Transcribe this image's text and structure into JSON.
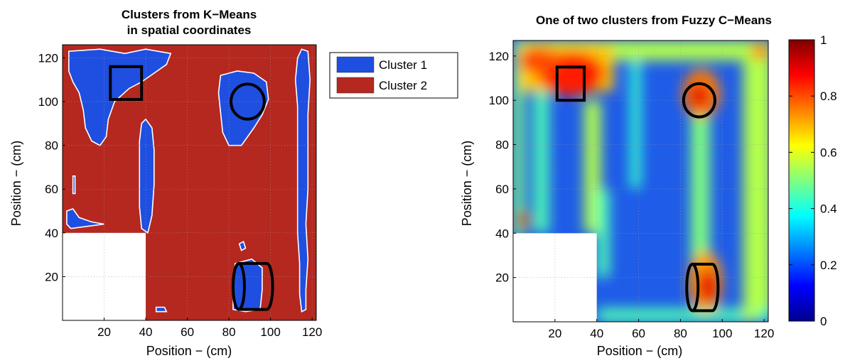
{
  "chart_data": [
    {
      "type": "heatmap",
      "title": "Clusters from K−Means",
      "subtitle": "in spatial coordinates",
      "xlabel": "Position − (cm)",
      "ylabel": "Position − (cm)",
      "xlim": [
        0,
        122
      ],
      "ylim": [
        0,
        126
      ],
      "xticks": [
        20,
        40,
        60,
        80,
        100,
        120
      ],
      "yticks": [
        20,
        40,
        60,
        80,
        100,
        120
      ],
      "grid": "dotted",
      "legend": [
        {
          "name": "Cluster 1",
          "color": "#1f4fe0"
        },
        {
          "name": "Cluster 2",
          "color": "#b5281f"
        }
      ],
      "legend_placement": "outside-top-right",
      "excluded_region": {
        "x": [
          0,
          40
        ],
        "y": [
          0,
          40
        ]
      },
      "markers": [
        {
          "shape": "square",
          "x": [
            23,
            38
          ],
          "y": [
            101,
            116
          ]
        },
        {
          "shape": "circle",
          "cx": 89,
          "cy": 100,
          "r": 8
        },
        {
          "shape": "cylinder",
          "x": [
            82,
            101
          ],
          "y": [
            5,
            26
          ]
        }
      ],
      "cluster1_regions": [
        {
          "description": "top-left band",
          "x": [
            3,
            52
          ],
          "y": [
            100,
            123
          ]
        },
        {
          "description": "top-left column",
          "x": [
            10,
            23
          ],
          "y": [
            78,
            118
          ]
        },
        {
          "description": "blob around circle",
          "x": [
            75,
            99
          ],
          "y": [
            78,
            113
          ]
        },
        {
          "description": "center column",
          "x": [
            37,
            44
          ],
          "y": [
            40,
            92
          ]
        },
        {
          "description": "right column",
          "x": [
            112,
            119
          ],
          "y": [
            4,
            124
          ]
        },
        {
          "description": "bottom-right object",
          "x": [
            82,
            96
          ],
          "y": [
            4,
            26
          ]
        },
        {
          "description": "left wedge",
          "x": [
            2,
            20
          ],
          "y": [
            42,
            50
          ]
        }
      ]
    },
    {
      "type": "heatmap",
      "title": "One of two clusters from Fuzzy C−Means",
      "xlabel": "Position − (cm)",
      "ylabel": "Position − (cm)",
      "xlim": [
        0,
        122
      ],
      "ylim": [
        0,
        127
      ],
      "xticks": [
        20,
        40,
        60,
        80,
        100,
        120
      ],
      "yticks": [
        20,
        40,
        60,
        80,
        100,
        120
      ],
      "grid": "dotted",
      "colorbar": {
        "ticks": [
          0,
          0.2,
          0.4,
          0.6,
          0.8,
          1
        ],
        "tick_labels": [
          "0",
          "0.2",
          "0.4",
          "0.6",
          "0.8",
          "1"
        ],
        "range": [
          0,
          1
        ],
        "colormap": "jet"
      },
      "excluded_region": {
        "x": [
          0,
          40
        ],
        "y": [
          0,
          40
        ]
      },
      "markers": [
        {
          "shape": "square",
          "x": [
            21,
            34
          ],
          "y": [
            100,
            115
          ]
        },
        {
          "shape": "circle",
          "cx": 89,
          "cy": 100,
          "r": 7.5
        },
        {
          "shape": "cylinder",
          "x": [
            83,
            98
          ],
          "y": [
            5,
            26
          ]
        }
      ],
      "hot_spots": [
        {
          "x": 28,
          "y": 110,
          "value": 0.85
        },
        {
          "x": 89,
          "y": 102,
          "value": 0.85
        },
        {
          "x": 93,
          "y": 16,
          "value": 0.88
        },
        {
          "x": 5,
          "y": 46,
          "value": 0.9
        },
        {
          "x": 118,
          "y": 122,
          "value": 0.75
        }
      ]
    }
  ]
}
